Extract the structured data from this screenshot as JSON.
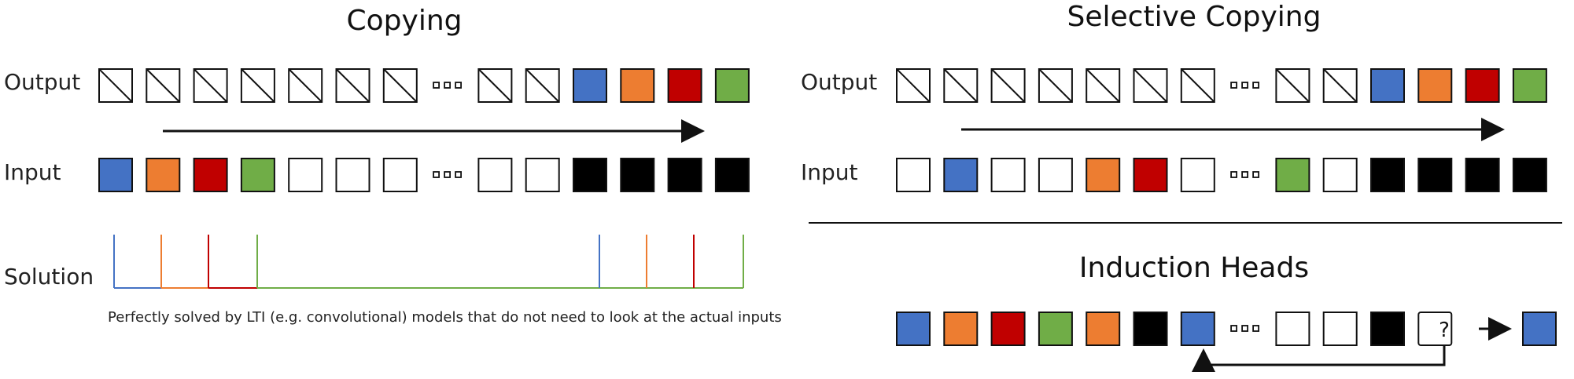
{
  "colors": {
    "blue": "#4472c4",
    "orange": "#ed7d31",
    "red": "#c00000",
    "green": "#70ad47",
    "black": "#000000",
    "white": "#ffffff"
  },
  "copying": {
    "title": "Copying",
    "output_label": "Output",
    "input_label": "Input",
    "solution_label": "Solution",
    "output_tokens": [
      "slash",
      "slash",
      "slash",
      "slash",
      "slash",
      "slash",
      "slash",
      "dots",
      "slash",
      "slash",
      "blue",
      "orange",
      "red",
      "green"
    ],
    "input_tokens": [
      "blue",
      "orange",
      "red",
      "green",
      "white",
      "white",
      "white",
      "dots",
      "white",
      "white",
      "black",
      "black",
      "black",
      "black"
    ],
    "caption": "Perfectly solved by LTI (e.g. convolutional) models that do not need to look at the actual inputs"
  },
  "selective_copying": {
    "title": "Selective Copying",
    "output_label": "Output",
    "input_label": "Input",
    "output_tokens": [
      "slash",
      "slash",
      "slash",
      "slash",
      "slash",
      "slash",
      "slash",
      "dots",
      "slash",
      "slash",
      "blue",
      "orange",
      "red",
      "green"
    ],
    "input_tokens": [
      "white",
      "blue",
      "white",
      "white",
      "orange",
      "red",
      "white",
      "dots",
      "green",
      "white",
      "black",
      "black",
      "black",
      "black"
    ]
  },
  "induction_heads": {
    "title": "Induction Heads",
    "sequence_tokens": [
      "blue",
      "orange",
      "red",
      "green",
      "orange",
      "black",
      "blue",
      "dots",
      "white",
      "white",
      "black",
      "query"
    ],
    "query_mark": "?",
    "answer_token": "blue"
  }
}
